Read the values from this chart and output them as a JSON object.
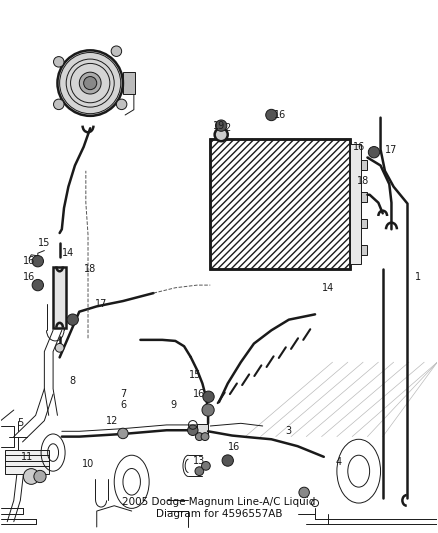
{
  "bg_color": "#ffffff",
  "line_color": "#1a1a1a",
  "fig_width": 4.38,
  "fig_height": 5.33,
  "dpi": 100,
  "title": "2005 Dodge Magnum Line-A/C Liquid\nDiagram for 4596557AB",
  "title_fs": 7.5,
  "label_fs": 7.0,
  "lw_main": 1.3,
  "lw_thin": 0.7,
  "lw_thick": 1.8,
  "gray_bg": "#d8d8d8",
  "gray_mid": "#888888",
  "gray_light": "#cccccc",
  "hatch_color": "#999999"
}
